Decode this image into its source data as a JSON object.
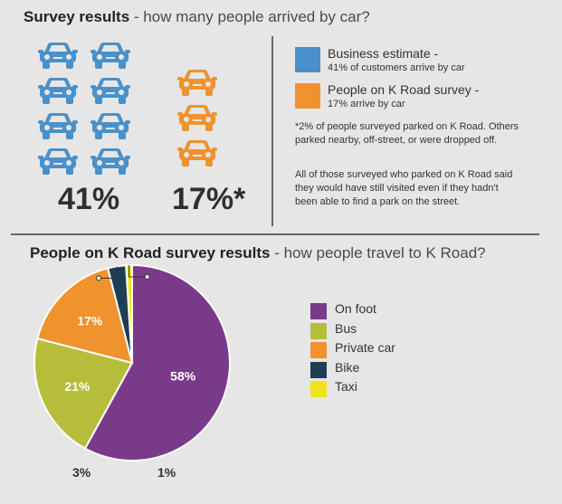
{
  "top_section": {
    "title_bold": "Survey results",
    "title_rest": " - how many people arrived by car?",
    "big_left": "41%",
    "big_right": "17%*",
    "car_icon_name": "car-icon",
    "legend": [
      {
        "color": "#4a90c9",
        "name": "Business estimate -",
        "sub": "41% of customers arrive by car"
      },
      {
        "color": "#f0922e",
        "name": "People on K Road survey -",
        "sub": "17% arrive by car"
      }
    ],
    "note1": "*2% of people surveyed parked on K Road. Others parked nearby, off-street, or were dropped off.",
    "note2": "All of those surveyed who parked on K Road said they would have still visited even if they hadn't been able to find a park on the street."
  },
  "bottom_section": {
    "title_bold": "People on K Road survey results",
    "title_rest": " - how people travel to K Road?"
  },
  "chart_data": [
    {
      "type": "bar",
      "title": "Survey results - how many people arrived by car?",
      "categories": [
        "Business estimate",
        "People on K Road survey"
      ],
      "values": [
        41,
        17
      ],
      "unit": "%",
      "colors": [
        "#4a90c9",
        "#f0922e"
      ]
    },
    {
      "type": "pie",
      "title": "People on K Road survey results - how people travel to K Road?",
      "categories": [
        "On foot",
        "Bus",
        "Private car",
        "Bike",
        "Taxi"
      ],
      "values": [
        58,
        21,
        17,
        3,
        1
      ],
      "labels": [
        "58%",
        "21%",
        "17%",
        "3%",
        "1%"
      ],
      "colors": [
        "#7a3a8a",
        "#b6bd3a",
        "#f0922e",
        "#1f3e55",
        "#f2e318"
      ],
      "legend_position": "right"
    }
  ]
}
